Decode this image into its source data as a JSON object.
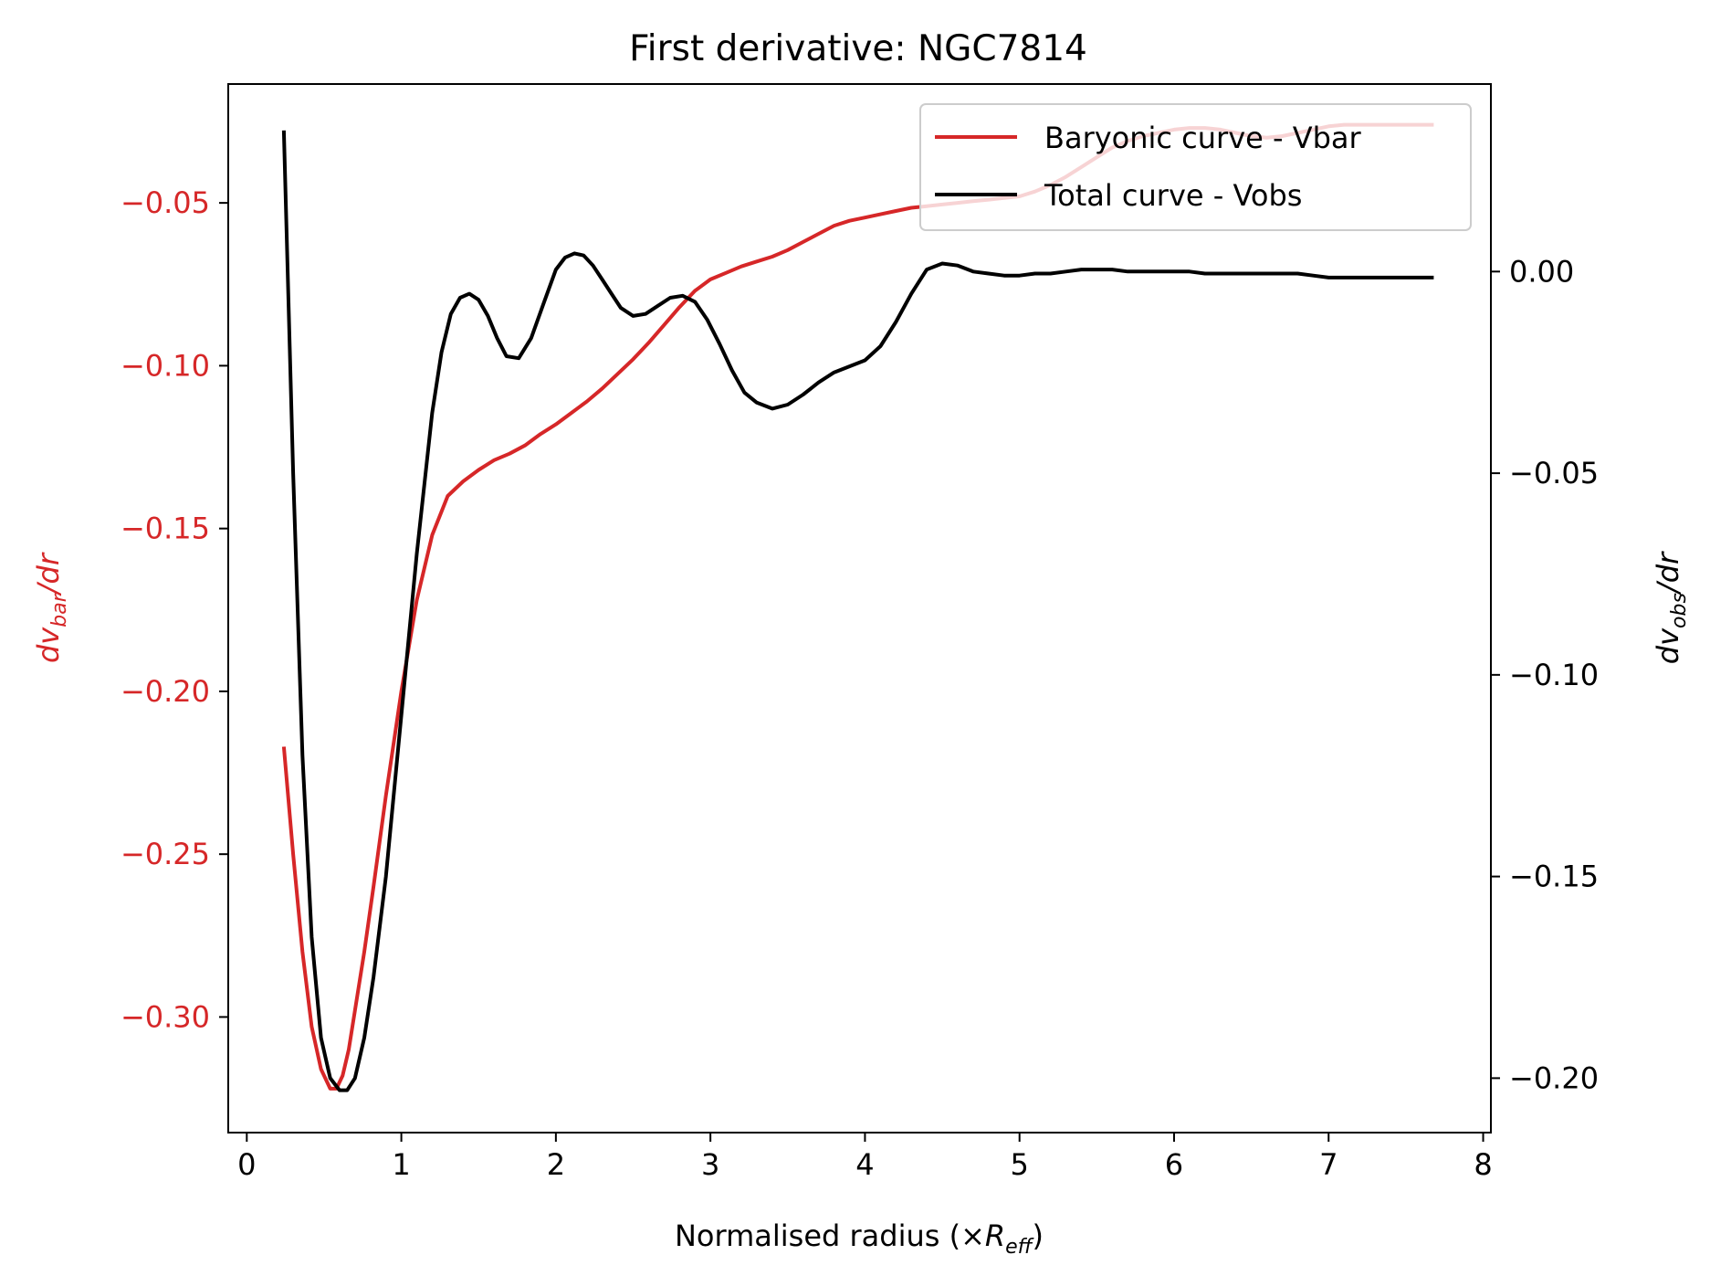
{
  "chart_data": {
    "type": "line",
    "title": "First derivative: NGC7814",
    "xlabel": {
      "prefix": "Normalised radius (×",
      "symbol": "R",
      "subscript": "eff",
      "suffix": ")"
    },
    "ylabel_left": {
      "prefix": "dv",
      "subscript": "bar",
      "suffix": "/dr"
    },
    "ylabel_right": {
      "prefix": "dv",
      "subscript": "obs",
      "suffix": "/dr"
    },
    "xlim": [
      -0.12,
      8.05
    ],
    "ylim_left": [
      -0.3355,
      -0.0135
    ],
    "ylim_right": [
      -0.2135,
      0.0465
    ],
    "xticks": [
      0,
      1,
      2,
      3,
      4,
      5,
      6,
      7,
      8
    ],
    "xtick_labels": [
      "0",
      "1",
      "2",
      "3",
      "4",
      "5",
      "6",
      "7",
      "8"
    ],
    "yticks_left": [
      -0.05,
      -0.1,
      -0.15,
      -0.2,
      -0.25,
      -0.3
    ],
    "ytick_labels_left": [
      "−0.05",
      "−0.10",
      "−0.15",
      "−0.20",
      "−0.25",
      "−0.30"
    ],
    "yticks_right": [
      0.0,
      -0.05,
      -0.1,
      -0.15,
      -0.2
    ],
    "ytick_labels_right": [
      "0.00",
      "−0.05",
      "−0.10",
      "−0.15",
      "−0.20"
    ],
    "legend_position": "top-right",
    "series": [
      {
        "name": "Baryonic curve - Vbar",
        "axis": "left",
        "color": "#d62728",
        "x": [
          0.24,
          0.3,
          0.36,
          0.42,
          0.48,
          0.54,
          0.58,
          0.62,
          0.66,
          0.7,
          0.76,
          0.82,
          0.9,
          1.0,
          1.1,
          1.2,
          1.3,
          1.4,
          1.5,
          1.6,
          1.7,
          1.8,
          1.9,
          2.0,
          2.1,
          2.2,
          2.3,
          2.4,
          2.5,
          2.6,
          2.7,
          2.8,
          2.9,
          3.0,
          3.1,
          3.2,
          3.3,
          3.4,
          3.5,
          3.6,
          3.7,
          3.8,
          3.9,
          4.0,
          4.1,
          4.2,
          4.3,
          4.4,
          4.5,
          4.6,
          4.7,
          4.8,
          4.9,
          5.0,
          5.1,
          5.2,
          5.3,
          5.4,
          5.5,
          5.6,
          5.7,
          5.8,
          5.9,
          6.0,
          6.1,
          6.2,
          6.3,
          6.4,
          6.5,
          6.6,
          6.7,
          6.8,
          6.9,
          7.0,
          7.1,
          7.2,
          7.3,
          7.4,
          7.5,
          7.6,
          7.68
        ],
        "values": [
          -0.217,
          -0.25,
          -0.28,
          -0.303,
          -0.316,
          -0.322,
          -0.322,
          -0.318,
          -0.31,
          -0.298,
          -0.28,
          -0.26,
          -0.232,
          -0.2,
          -0.172,
          -0.152,
          -0.14,
          -0.1355,
          -0.132,
          -0.129,
          -0.127,
          -0.1245,
          -0.121,
          -0.118,
          -0.1145,
          -0.111,
          -0.107,
          -0.1025,
          -0.098,
          -0.093,
          -0.0875,
          -0.082,
          -0.077,
          -0.0735,
          -0.0715,
          -0.0695,
          -0.068,
          -0.0665,
          -0.0645,
          -0.062,
          -0.0595,
          -0.057,
          -0.0555,
          -0.0545,
          -0.0535,
          -0.0525,
          -0.0515,
          -0.051,
          -0.0505,
          -0.05,
          -0.0495,
          -0.049,
          -0.0485,
          -0.048,
          -0.0465,
          -0.0445,
          -0.042,
          -0.039,
          -0.036,
          -0.033,
          -0.031,
          -0.0295,
          -0.0285,
          -0.0275,
          -0.027,
          -0.027,
          -0.0275,
          -0.0285,
          -0.0295,
          -0.03,
          -0.0295,
          -0.0285,
          -0.0275,
          -0.0265,
          -0.026,
          -0.026,
          -0.026,
          -0.026,
          -0.026,
          -0.026,
          -0.026
        ]
      },
      {
        "name": "Total curve - Vobs",
        "axis": "right",
        "color": "#000000",
        "x": [
          0.24,
          0.3,
          0.36,
          0.42,
          0.48,
          0.54,
          0.6,
          0.65,
          0.7,
          0.76,
          0.82,
          0.9,
          1.0,
          1.1,
          1.2,
          1.26,
          1.32,
          1.38,
          1.44,
          1.5,
          1.56,
          1.62,
          1.68,
          1.76,
          1.84,
          1.92,
          2.0,
          2.06,
          2.12,
          2.18,
          2.24,
          2.3,
          2.36,
          2.42,
          2.5,
          2.58,
          2.66,
          2.74,
          2.82,
          2.9,
          2.98,
          3.06,
          3.14,
          3.22,
          3.3,
          3.4,
          3.5,
          3.6,
          3.7,
          3.8,
          3.9,
          4.0,
          4.1,
          4.2,
          4.3,
          4.4,
          4.5,
          4.6,
          4.7,
          4.8,
          4.9,
          5.0,
          5.1,
          5.2,
          5.3,
          5.4,
          5.5,
          5.6,
          5.7,
          5.8,
          5.9,
          6.0,
          6.1,
          6.2,
          6.3,
          6.4,
          6.5,
          6.6,
          6.7,
          6.8,
          6.9,
          7.0,
          7.1,
          7.2,
          7.3,
          7.4,
          7.5,
          7.6,
          7.68
        ],
        "values": [
          0.035,
          -0.05,
          -0.12,
          -0.165,
          -0.19,
          -0.2,
          -0.203,
          -0.203,
          -0.2,
          -0.19,
          -0.175,
          -0.15,
          -0.11,
          -0.07,
          -0.035,
          -0.02,
          -0.0105,
          -0.0065,
          -0.0055,
          -0.007,
          -0.011,
          -0.0165,
          -0.021,
          -0.0215,
          -0.0165,
          -0.008,
          0.0005,
          0.0035,
          0.0045,
          0.004,
          0.0015,
          -0.002,
          -0.0055,
          -0.009,
          -0.011,
          -0.0105,
          -0.0085,
          -0.0065,
          -0.006,
          -0.0075,
          -0.012,
          -0.018,
          -0.0245,
          -0.03,
          -0.0325,
          -0.034,
          -0.033,
          -0.0305,
          -0.0275,
          -0.025,
          -0.0235,
          -0.022,
          -0.0185,
          -0.0125,
          -0.0055,
          0.0005,
          0.002,
          0.0015,
          0.0,
          -0.0005,
          -0.001,
          -0.001,
          -0.0005,
          -0.0005,
          0.0,
          0.0005,
          0.0005,
          0.0005,
          0.0,
          0.0,
          0.0,
          0.0,
          0.0,
          -0.0005,
          -0.0005,
          -0.0005,
          -0.0005,
          -0.0005,
          -0.0005,
          -0.0005,
          -0.001,
          -0.0015,
          -0.0015,
          -0.0015,
          -0.0015,
          -0.0015,
          -0.0015,
          -0.0015,
          -0.0015
        ]
      }
    ]
  }
}
